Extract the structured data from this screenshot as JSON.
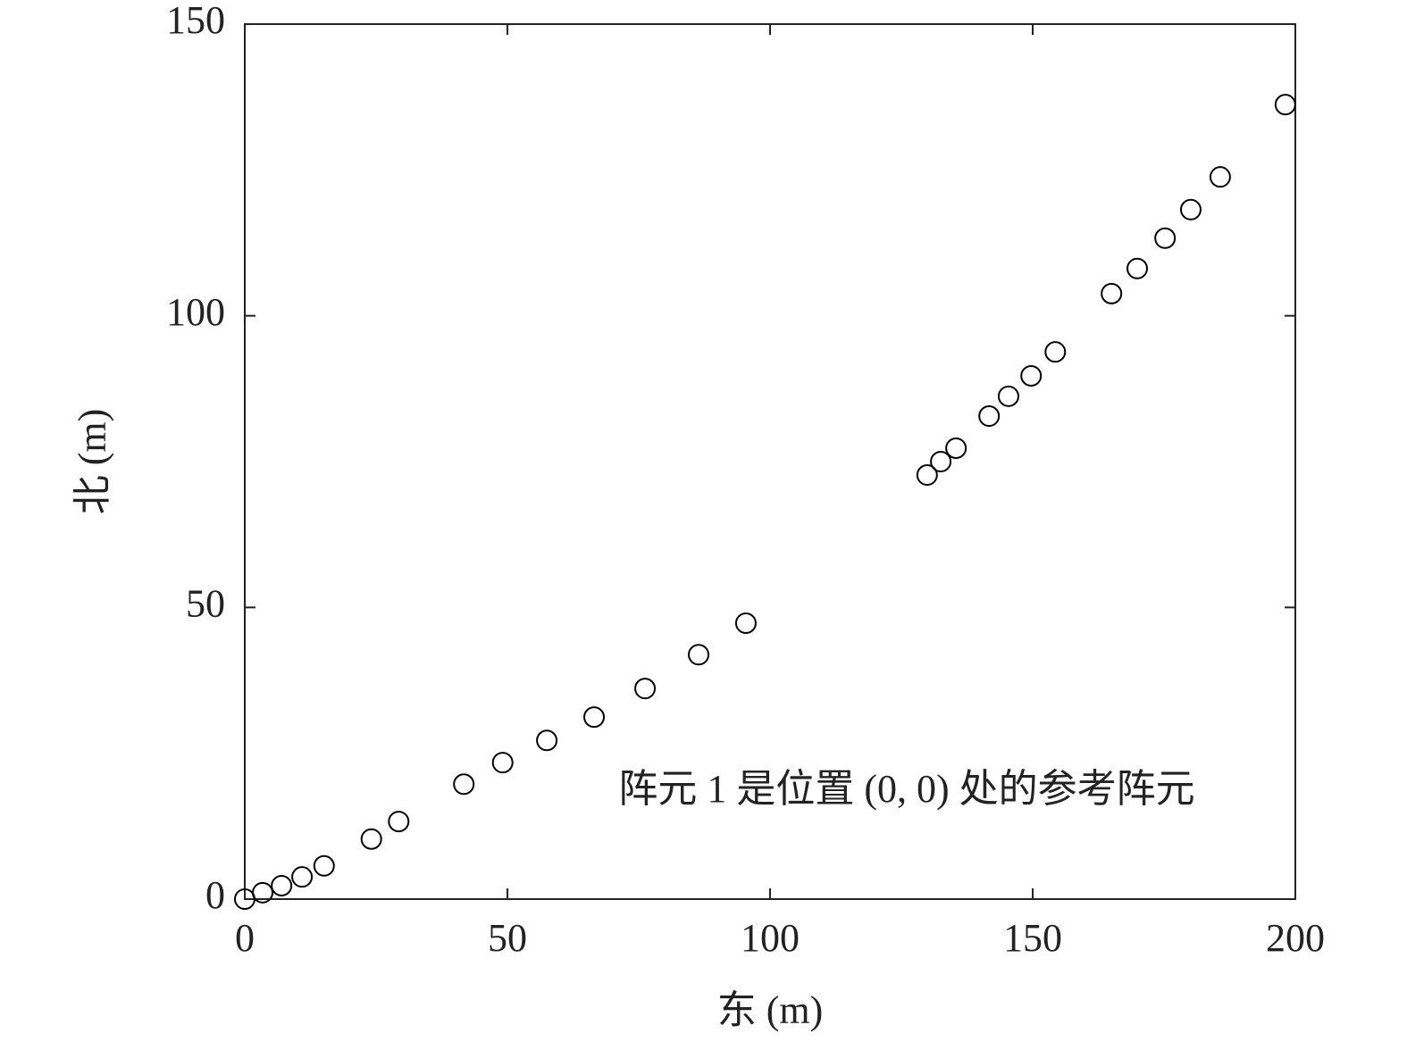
{
  "chart_data": {
    "type": "scatter",
    "xlabel": "东 (m)",
    "ylabel": "北 (m)",
    "annotation": "阵元 1 是位置 (0, 0) 处的参考阵元",
    "x": [
      0,
      3.4,
      7.0,
      10.9,
      15.1,
      24.1,
      29.3,
      41.7,
      49.1,
      57.5,
      66.5,
      76.2,
      86.4,
      95.4,
      129.9,
      132.5,
      135.4,
      141.7,
      145.4,
      149.7,
      154.3,
      165.0,
      169.9,
      175.2,
      180.1,
      185.7,
      198.1
    ],
    "values": [
      0,
      1.1,
      2.3,
      3.8,
      5.7,
      10.3,
      13.3,
      19.7,
      23.4,
      27.2,
      31.2,
      36.1,
      41.9,
      47.3,
      72.7,
      75.0,
      77.3,
      82.8,
      86.2,
      89.7,
      93.8,
      103.8,
      108.1,
      113.3,
      118.2,
      123.8,
      136.2
    ],
    "color": "#000000",
    "xlim": [
      0,
      200
    ],
    "xticks": [
      0,
      50,
      100,
      150,
      200
    ],
    "ylim": [
      0,
      150
    ],
    "yticks": [
      0,
      50,
      100,
      150
    ],
    "grid": false
  }
}
